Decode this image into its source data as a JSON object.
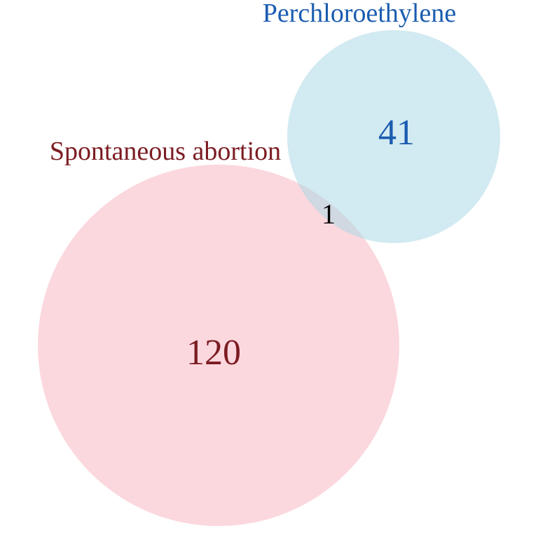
{
  "diagram": {
    "type": "venn",
    "colors": {
      "set_a_fill": "#f9c3cd",
      "set_a_text": "#7b1c22",
      "set_b_fill": "#add8e6",
      "set_b_text": "#1a5cb0",
      "overlap_text": "#000000"
    },
    "sets": [
      {
        "key": "a",
        "label": "Spontaneous abortion",
        "count": "120"
      },
      {
        "key": "b",
        "label": "Perchloroethylene",
        "count": "41"
      }
    ],
    "overlap": {
      "count": "1"
    }
  }
}
